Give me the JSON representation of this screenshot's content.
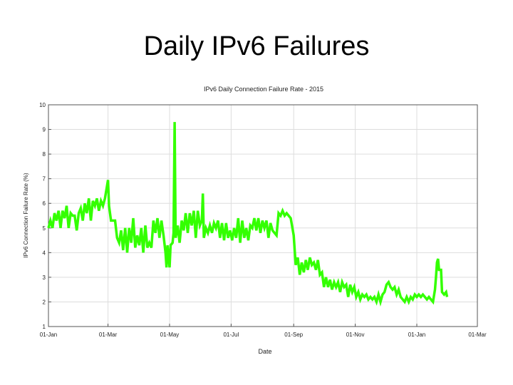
{
  "slide": {
    "title": "Daily IPv6 Failures"
  },
  "chart_data": {
    "type": "line",
    "title": "IPv6 Daily Connection Failure Rate - 2015",
    "xlabel": "Date",
    "ylabel": "IPv6 Connection Failure Rate (%)",
    "ylim": [
      1,
      10
    ],
    "yticks": [
      "1",
      "2",
      "3",
      "4",
      "5",
      "6",
      "7",
      "8",
      "9",
      "10"
    ],
    "xlim": [
      "2015-01-01",
      "2016-03-01"
    ],
    "xticks": [
      {
        "date": "2015-01-01",
        "label": "01-Jan"
      },
      {
        "date": "2015-03-01",
        "label": "01-Mar"
      },
      {
        "date": "2015-05-01",
        "label": "01-May"
      },
      {
        "date": "2015-07-01",
        "label": "01-Jul"
      },
      {
        "date": "2015-09-01",
        "label": "01-Sep"
      },
      {
        "date": "2015-11-01",
        "label": "01-Nov"
      },
      {
        "date": "2016-01-01",
        "label": "01-Jan"
      },
      {
        "date": "2016-03-01",
        "label": "01-Mar"
      }
    ],
    "grid": true,
    "series": [
      {
        "color": "#33ff00",
        "points": [
          [
            "2015-01-01",
            5.0
          ],
          [
            "2015-01-03",
            5.3
          ],
          [
            "2015-01-05",
            5.0
          ],
          [
            "2015-01-07",
            5.6
          ],
          [
            "2015-01-09",
            5.3
          ],
          [
            "2015-01-11",
            5.7
          ],
          [
            "2015-01-13",
            5.0
          ],
          [
            "2015-01-15",
            5.7
          ],
          [
            "2015-01-17",
            5.4
          ],
          [
            "2015-01-19",
            5.9
          ],
          [
            "2015-01-21",
            5.0
          ],
          [
            "2015-01-23",
            5.6
          ],
          [
            "2015-01-25",
            5.5
          ],
          [
            "2015-01-27",
            5.5
          ],
          [
            "2015-01-29",
            4.9
          ],
          [
            "2015-01-31",
            5.6
          ],
          [
            "2015-02-02",
            5.8
          ],
          [
            "2015-02-04",
            5.3
          ],
          [
            "2015-02-06",
            6.0
          ],
          [
            "2015-02-08",
            5.6
          ],
          [
            "2015-02-10",
            6.2
          ],
          [
            "2015-02-12",
            5.3
          ],
          [
            "2015-02-14",
            6.1
          ],
          [
            "2015-02-16",
            5.9
          ],
          [
            "2015-02-18",
            6.2
          ],
          [
            "2015-02-20",
            5.7
          ],
          [
            "2015-02-22",
            6.1
          ],
          [
            "2015-02-24",
            5.9
          ],
          [
            "2015-02-26",
            6.2
          ],
          [
            "2015-03-01",
            6.95
          ],
          [
            "2015-03-02",
            5.9
          ],
          [
            "2015-03-04",
            5.3
          ],
          [
            "2015-03-08",
            5.3
          ],
          [
            "2015-03-10",
            4.6
          ],
          [
            "2015-03-12",
            4.4
          ],
          [
            "2015-03-14",
            4.9
          ],
          [
            "2015-03-16",
            4.1
          ],
          [
            "2015-03-18",
            5.0
          ],
          [
            "2015-03-20",
            4.0
          ],
          [
            "2015-03-22",
            5.0
          ],
          [
            "2015-03-24",
            4.4
          ],
          [
            "2015-03-26",
            5.4
          ],
          [
            "2015-03-28",
            4.2
          ],
          [
            "2015-03-30",
            4.7
          ],
          [
            "2015-04-01",
            4.3
          ],
          [
            "2015-04-03",
            5.0
          ],
          [
            "2015-04-05",
            4.0
          ],
          [
            "2015-04-07",
            5.1
          ],
          [
            "2015-04-09",
            4.2
          ],
          [
            "2015-04-11",
            4.4
          ],
          [
            "2015-04-13",
            4.2
          ],
          [
            "2015-04-15",
            5.3
          ],
          [
            "2015-04-17",
            4.8
          ],
          [
            "2015-04-19",
            5.4
          ],
          [
            "2015-04-21",
            4.6
          ],
          [
            "2015-04-23",
            5.3
          ],
          [
            "2015-04-25",
            4.7
          ],
          [
            "2015-04-27",
            4.0
          ],
          [
            "2015-04-28",
            3.4
          ],
          [
            "2015-04-29",
            4.3
          ],
          [
            "2015-05-01",
            3.4
          ],
          [
            "2015-05-02",
            4.3
          ],
          [
            "2015-05-04",
            4.4
          ],
          [
            "2015-05-05",
            4.8
          ],
          [
            "2015-05-06",
            9.3
          ],
          [
            "2015-05-07",
            4.6
          ],
          [
            "2015-05-09",
            5.1
          ],
          [
            "2015-05-11",
            4.4
          ],
          [
            "2015-05-13",
            5.3
          ],
          [
            "2015-05-15",
            4.9
          ],
          [
            "2015-05-17",
            5.6
          ],
          [
            "2015-05-19",
            4.8
          ],
          [
            "2015-05-21",
            5.6
          ],
          [
            "2015-05-23",
            5.1
          ],
          [
            "2015-05-25",
            5.7
          ],
          [
            "2015-05-27",
            4.6
          ],
          [
            "2015-05-29",
            5.7
          ],
          [
            "2015-05-31",
            5.1
          ],
          [
            "2015-06-02",
            5.3
          ],
          [
            "2015-06-03",
            6.4
          ],
          [
            "2015-06-04",
            4.6
          ],
          [
            "2015-06-06",
            5.0
          ],
          [
            "2015-06-08",
            4.8
          ],
          [
            "2015-06-10",
            5.1
          ],
          [
            "2015-06-12",
            4.8
          ],
          [
            "2015-06-14",
            5.2
          ],
          [
            "2015-06-16",
            5.0
          ],
          [
            "2015-06-18",
            5.3
          ],
          [
            "2015-06-20",
            4.6
          ],
          [
            "2015-06-22",
            5.2
          ],
          [
            "2015-06-24",
            4.5
          ],
          [
            "2015-06-26",
            5.2
          ],
          [
            "2015-06-28",
            4.6
          ],
          [
            "2015-06-30",
            4.9
          ],
          [
            "2015-07-02",
            4.5
          ],
          [
            "2015-07-04",
            5.0
          ],
          [
            "2015-07-06",
            4.6
          ],
          [
            "2015-07-08",
            5.4
          ],
          [
            "2015-07-10",
            4.4
          ],
          [
            "2015-07-12",
            5.3
          ],
          [
            "2015-07-14",
            4.6
          ],
          [
            "2015-07-16",
            5.0
          ],
          [
            "2015-07-18",
            4.5
          ],
          [
            "2015-07-20",
            5.1
          ],
          [
            "2015-07-22",
            5.0
          ],
          [
            "2015-07-24",
            5.4
          ],
          [
            "2015-07-26",
            4.9
          ],
          [
            "2015-07-28",
            5.4
          ],
          [
            "2015-07-30",
            4.8
          ],
          [
            "2015-08-01",
            5.3
          ],
          [
            "2015-08-03",
            5.0
          ],
          [
            "2015-08-05",
            5.3
          ],
          [
            "2015-08-07",
            4.6
          ],
          [
            "2015-08-09",
            5.2
          ],
          [
            "2015-08-11",
            4.9
          ],
          [
            "2015-08-13",
            4.8
          ],
          [
            "2015-08-15",
            4.7
          ],
          [
            "2015-08-17",
            5.6
          ],
          [
            "2015-08-19",
            5.5
          ],
          [
            "2015-08-21",
            5.7
          ],
          [
            "2015-08-23",
            5.5
          ],
          [
            "2015-08-25",
            5.6
          ],
          [
            "2015-08-27",
            5.5
          ],
          [
            "2015-08-29",
            5.4
          ],
          [
            "2015-09-01",
            4.7
          ],
          [
            "2015-09-03",
            3.5
          ],
          [
            "2015-09-05",
            3.8
          ],
          [
            "2015-09-07",
            3.1
          ],
          [
            "2015-09-09",
            3.6
          ],
          [
            "2015-09-11",
            3.2
          ],
          [
            "2015-09-13",
            3.7
          ],
          [
            "2015-09-15",
            3.3
          ],
          [
            "2015-09-17",
            3.8
          ],
          [
            "2015-09-19",
            3.5
          ],
          [
            "2015-09-21",
            3.6
          ],
          [
            "2015-09-23",
            3.3
          ],
          [
            "2015-09-25",
            3.7
          ],
          [
            "2015-09-27",
            3.1
          ],
          [
            "2015-09-29",
            3.2
          ],
          [
            "2015-10-01",
            2.6
          ],
          [
            "2015-10-03",
            3.0
          ],
          [
            "2015-10-05",
            2.6
          ],
          [
            "2015-10-07",
            2.9
          ],
          [
            "2015-10-09",
            2.5
          ],
          [
            "2015-10-11",
            2.8
          ],
          [
            "2015-10-13",
            2.6
          ],
          [
            "2015-10-15",
            2.8
          ],
          [
            "2015-10-17",
            2.4
          ],
          [
            "2015-10-19",
            2.8
          ],
          [
            "2015-10-21",
            2.6
          ],
          [
            "2015-10-23",
            2.7
          ],
          [
            "2015-10-25",
            2.2
          ],
          [
            "2015-10-27",
            2.7
          ],
          [
            "2015-10-29",
            2.4
          ],
          [
            "2015-10-31",
            2.6
          ],
          [
            "2015-11-02",
            2.2
          ],
          [
            "2015-11-04",
            2.4
          ],
          [
            "2015-11-06",
            2.1
          ],
          [
            "2015-11-08",
            2.3
          ],
          [
            "2015-11-10",
            2.2
          ],
          [
            "2015-11-12",
            2.3
          ],
          [
            "2015-11-14",
            2.1
          ],
          [
            "2015-11-16",
            2.2
          ],
          [
            "2015-11-18",
            2.1
          ],
          [
            "2015-11-20",
            2.2
          ],
          [
            "2015-11-22",
            2.0
          ],
          [
            "2015-11-24",
            2.3
          ],
          [
            "2015-11-26",
            2.0
          ],
          [
            "2015-11-28",
            2.3
          ],
          [
            "2015-11-30",
            2.4
          ],
          [
            "2015-12-02",
            2.7
          ],
          [
            "2015-12-04",
            2.8
          ],
          [
            "2015-12-06",
            2.6
          ],
          [
            "2015-12-08",
            2.5
          ],
          [
            "2015-12-10",
            2.6
          ],
          [
            "2015-12-12",
            2.3
          ],
          [
            "2015-12-14",
            2.5
          ],
          [
            "2015-12-16",
            2.2
          ],
          [
            "2015-12-18",
            2.1
          ],
          [
            "2015-12-20",
            2.0
          ],
          [
            "2015-12-22",
            2.2
          ],
          [
            "2015-12-24",
            2.0
          ],
          [
            "2015-12-26",
            2.2
          ],
          [
            "2015-12-28",
            2.1
          ],
          [
            "2015-12-30",
            2.3
          ],
          [
            "2016-01-01",
            2.2
          ],
          [
            "2016-01-03",
            2.3
          ],
          [
            "2016-01-05",
            2.2
          ],
          [
            "2016-01-07",
            2.3
          ],
          [
            "2016-01-09",
            2.2
          ],
          [
            "2016-01-11",
            2.1
          ],
          [
            "2016-01-13",
            2.2
          ],
          [
            "2016-01-15",
            2.1
          ],
          [
            "2016-01-17",
            2.0
          ],
          [
            "2016-01-19",
            2.5
          ],
          [
            "2016-01-20",
            3.0
          ],
          [
            "2016-01-21",
            3.6
          ],
          [
            "2016-01-22",
            3.75
          ],
          [
            "2016-01-23",
            3.3
          ],
          [
            "2016-01-25",
            3.3
          ],
          [
            "2016-01-26",
            2.4
          ],
          [
            "2016-01-28",
            2.3
          ],
          [
            "2016-01-30",
            2.4
          ],
          [
            "2016-01-31",
            2.2
          ]
        ]
      }
    ]
  }
}
